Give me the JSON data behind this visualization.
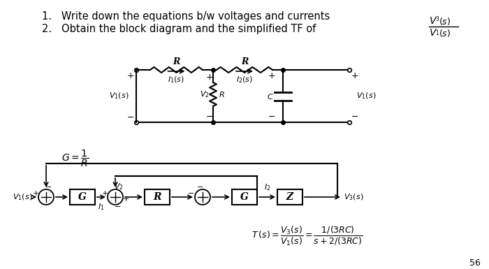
{
  "bg_color": "#ffffff",
  "text_color": "#000000",
  "title1": "1.   Write down the equations b/w voltages and currents",
  "title2": "2.   Obtain the block diagram and the simplified TF of",
  "page_num": "56"
}
